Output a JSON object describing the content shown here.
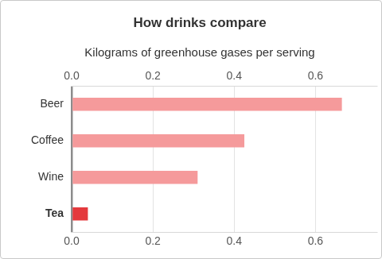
{
  "chart_data": {
    "type": "bar",
    "title": "How drinks compare",
    "subtitle": "Kilograms of greenhouse gases per serving",
    "orientation": "horizontal",
    "categories": [
      "Beer",
      "Coffee",
      "Wine",
      "Tea"
    ],
    "values": [
      0.665,
      0.425,
      0.31,
      0.04
    ],
    "colors": [
      "#f59a9b",
      "#f59a9b",
      "#f59a9b",
      "#e4393d"
    ],
    "xlim": [
      0,
      0.75
    ],
    "xticks": [
      {
        "value": 0,
        "label": "0.0"
      },
      0.2,
      0.4,
      0.6
    ],
    "grid": true
  }
}
